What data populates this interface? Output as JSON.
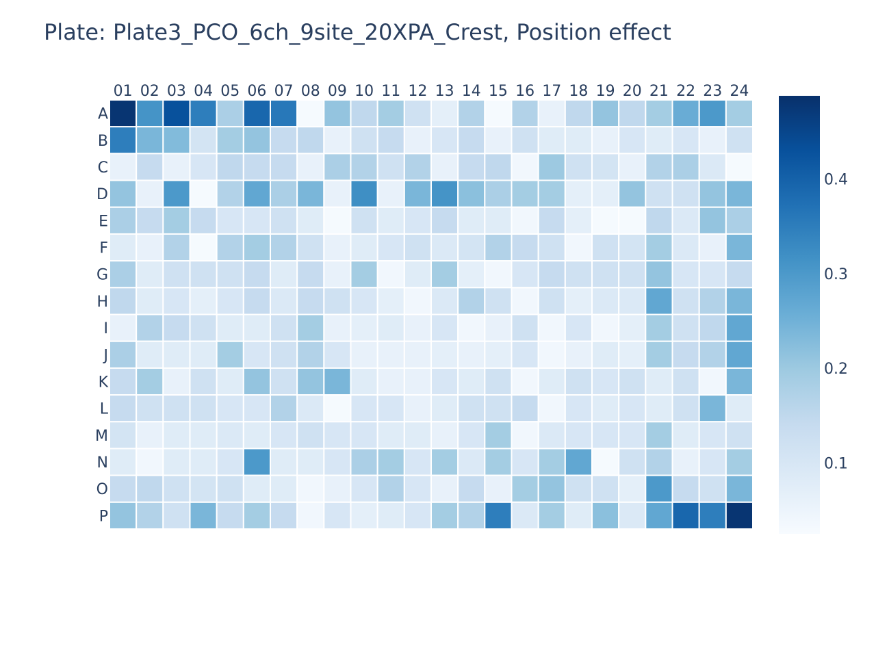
{
  "chart_data": {
    "type": "heatmap",
    "title": "Plate: Plate3_PCO_6ch_9site_20XPA_Crest, Position effect",
    "columns": [
      "01",
      "02",
      "03",
      "04",
      "05",
      "06",
      "07",
      "08",
      "09",
      "10",
      "11",
      "12",
      "13",
      "14",
      "15",
      "16",
      "17",
      "18",
      "19",
      "20",
      "21",
      "22",
      "23",
      "24"
    ],
    "rows": [
      "A",
      "B",
      "C",
      "D",
      "E",
      "F",
      "G",
      "H",
      "I",
      "J",
      "K",
      "L",
      "M",
      "N",
      "O",
      "P"
    ],
    "values": [
      [
        0.48,
        0.31,
        0.43,
        0.35,
        0.18,
        0.39,
        0.36,
        0.03,
        0.21,
        0.15,
        0.19,
        0.12,
        0.07,
        0.17,
        0.03,
        0.17,
        0.06,
        0.15,
        0.21,
        0.15,
        0.19,
        0.26,
        0.3,
        0.19
      ],
      [
        0.35,
        0.24,
        0.23,
        0.11,
        0.19,
        0.21,
        0.14,
        0.15,
        0.06,
        0.12,
        0.14,
        0.06,
        0.1,
        0.14,
        0.06,
        0.12,
        0.08,
        0.08,
        0.06,
        0.1,
        0.08,
        0.1,
        0.06,
        0.12
      ],
      [
        0.06,
        0.14,
        0.06,
        0.1,
        0.15,
        0.14,
        0.14,
        0.06,
        0.18,
        0.17,
        0.12,
        0.17,
        0.06,
        0.14,
        0.15,
        0.04,
        0.2,
        0.12,
        0.11,
        0.06,
        0.17,
        0.18,
        0.09,
        0.03
      ],
      [
        0.21,
        0.06,
        0.3,
        0.03,
        0.17,
        0.27,
        0.18,
        0.24,
        0.06,
        0.32,
        0.06,
        0.24,
        0.31,
        0.22,
        0.18,
        0.19,
        0.19,
        0.07,
        0.07,
        0.21,
        0.12,
        0.12,
        0.21,
        0.24
      ],
      [
        0.18,
        0.14,
        0.19,
        0.14,
        0.1,
        0.1,
        0.12,
        0.08,
        0.03,
        0.12,
        0.08,
        0.1,
        0.14,
        0.08,
        0.08,
        0.04,
        0.14,
        0.07,
        0.03,
        0.03,
        0.15,
        0.09,
        0.21,
        0.18
      ],
      [
        0.08,
        0.06,
        0.17,
        0.03,
        0.17,
        0.19,
        0.17,
        0.12,
        0.06,
        0.08,
        0.1,
        0.12,
        0.09,
        0.11,
        0.17,
        0.14,
        0.12,
        0.04,
        0.12,
        0.11,
        0.19,
        0.09,
        0.06,
        0.24
      ],
      [
        0.18,
        0.08,
        0.12,
        0.12,
        0.12,
        0.14,
        0.08,
        0.14,
        0.06,
        0.19,
        0.04,
        0.08,
        0.19,
        0.07,
        0.04,
        0.1,
        0.14,
        0.12,
        0.12,
        0.12,
        0.21,
        0.1,
        0.1,
        0.14
      ],
      [
        0.15,
        0.08,
        0.1,
        0.07,
        0.1,
        0.14,
        0.09,
        0.14,
        0.12,
        0.1,
        0.07,
        0.04,
        0.09,
        0.17,
        0.12,
        0.04,
        0.12,
        0.07,
        0.09,
        0.09,
        0.27,
        0.12,
        0.17,
        0.24
      ],
      [
        0.06,
        0.17,
        0.14,
        0.12,
        0.08,
        0.08,
        0.12,
        0.19,
        0.06,
        0.07,
        0.08,
        0.06,
        0.1,
        0.04,
        0.06,
        0.12,
        0.04,
        0.1,
        0.04,
        0.07,
        0.19,
        0.12,
        0.15,
        0.27
      ],
      [
        0.18,
        0.08,
        0.08,
        0.08,
        0.19,
        0.1,
        0.12,
        0.17,
        0.1,
        0.06,
        0.06,
        0.06,
        0.07,
        0.06,
        0.07,
        0.1,
        0.04,
        0.06,
        0.08,
        0.07,
        0.19,
        0.14,
        0.17,
        0.27
      ],
      [
        0.14,
        0.19,
        0.06,
        0.12,
        0.08,
        0.21,
        0.12,
        0.21,
        0.24,
        0.08,
        0.06,
        0.06,
        0.1,
        0.08,
        0.12,
        0.04,
        0.08,
        0.12,
        0.1,
        0.12,
        0.08,
        0.12,
        0.04,
        0.24
      ],
      [
        0.14,
        0.12,
        0.12,
        0.12,
        0.1,
        0.1,
        0.17,
        0.09,
        0.03,
        0.1,
        0.1,
        0.06,
        0.08,
        0.12,
        0.12,
        0.14,
        0.04,
        0.1,
        0.08,
        0.1,
        0.08,
        0.12,
        0.24,
        0.08
      ],
      [
        0.11,
        0.06,
        0.08,
        0.08,
        0.09,
        0.08,
        0.1,
        0.12,
        0.1,
        0.1,
        0.08,
        0.08,
        0.06,
        0.1,
        0.19,
        0.04,
        0.09,
        0.1,
        0.1,
        0.1,
        0.19,
        0.08,
        0.1,
        0.12
      ],
      [
        0.08,
        0.04,
        0.08,
        0.08,
        0.1,
        0.3,
        0.08,
        0.08,
        0.1,
        0.18,
        0.19,
        0.1,
        0.19,
        0.09,
        0.19,
        0.1,
        0.19,
        0.27,
        0.03,
        0.12,
        0.17,
        0.06,
        0.1,
        0.19
      ],
      [
        0.14,
        0.15,
        0.12,
        0.11,
        0.12,
        0.08,
        0.08,
        0.04,
        0.06,
        0.1,
        0.17,
        0.1,
        0.06,
        0.14,
        0.06,
        0.19,
        0.21,
        0.12,
        0.12,
        0.07,
        0.3,
        0.14,
        0.12,
        0.24
      ],
      [
        0.21,
        0.17,
        0.12,
        0.24,
        0.14,
        0.19,
        0.14,
        0.04,
        0.1,
        0.07,
        0.08,
        0.1,
        0.19,
        0.17,
        0.35,
        0.09,
        0.19,
        0.08,
        0.22,
        0.09,
        0.27,
        0.39,
        0.35,
        0.48
      ]
    ],
    "colorscale": "Blues",
    "zmin": 0.025,
    "zmax": 0.488,
    "colorbar": {
      "tickvals": [
        0.1,
        0.2,
        0.3,
        0.4
      ],
      "ticktext": [
        "0.1",
        "0.2",
        "0.3",
        "0.4"
      ]
    },
    "xaxis_side": "top",
    "yaxis_reversed": true,
    "grid": false
  }
}
